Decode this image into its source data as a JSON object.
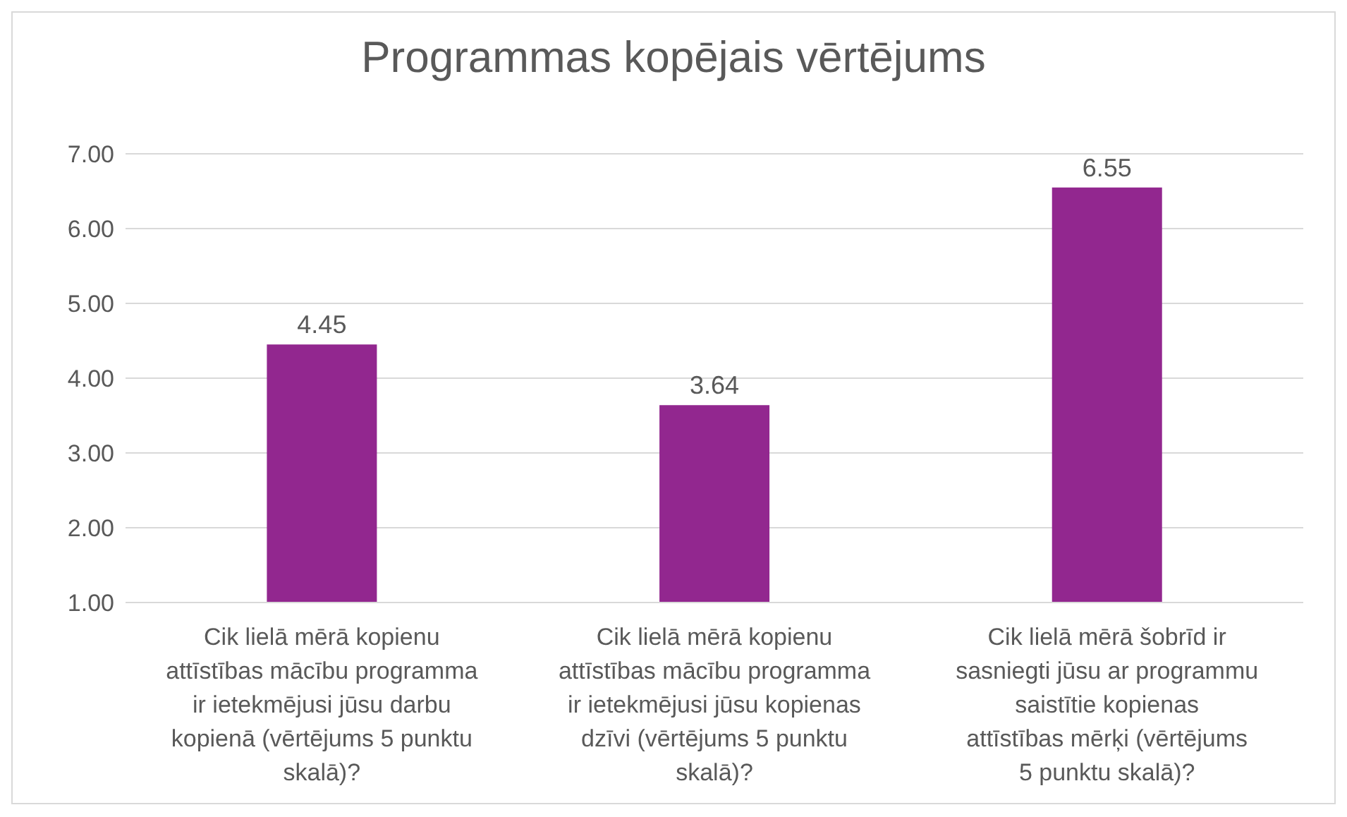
{
  "chart_data": {
    "type": "bar",
    "title": "Programmas kopējais vērtējums",
    "categories": [
      "Cik lielā mērā kopienu attīstības mācību programma ir ietekmējusi jūsu darbu kopienā (vērtējums 5 punktu skalā)?",
      "Cik lielā mērā kopienu attīstības mācību programma ir ietekmējusi jūsu kopienas dzīvi (vērtējums 5 punktu skalā)?",
      "Cik lielā mērā šobrīd ir sasniegti jūsu ar programmu saistītie kopienas attīstības mērķi (vērtējums 5 punktu skalā)?"
    ],
    "values": [
      4.45,
      3.64,
      6.55
    ],
    "color": "#92278f",
    "ylim": [
      1,
      7
    ],
    "yticks": [
      {
        "value": 1,
        "label": "1.00"
      },
      {
        "value": 2,
        "label": "2.00"
      },
      {
        "value": 3,
        "label": "3.00"
      },
      {
        "value": 4,
        "label": "4.00"
      },
      {
        "value": 5,
        "label": "5.00"
      },
      {
        "value": 6,
        "label": "6.00"
      },
      {
        "value": 7,
        "label": "7.00"
      }
    ],
    "grid": "y",
    "data_labels": true,
    "legend": false
  }
}
